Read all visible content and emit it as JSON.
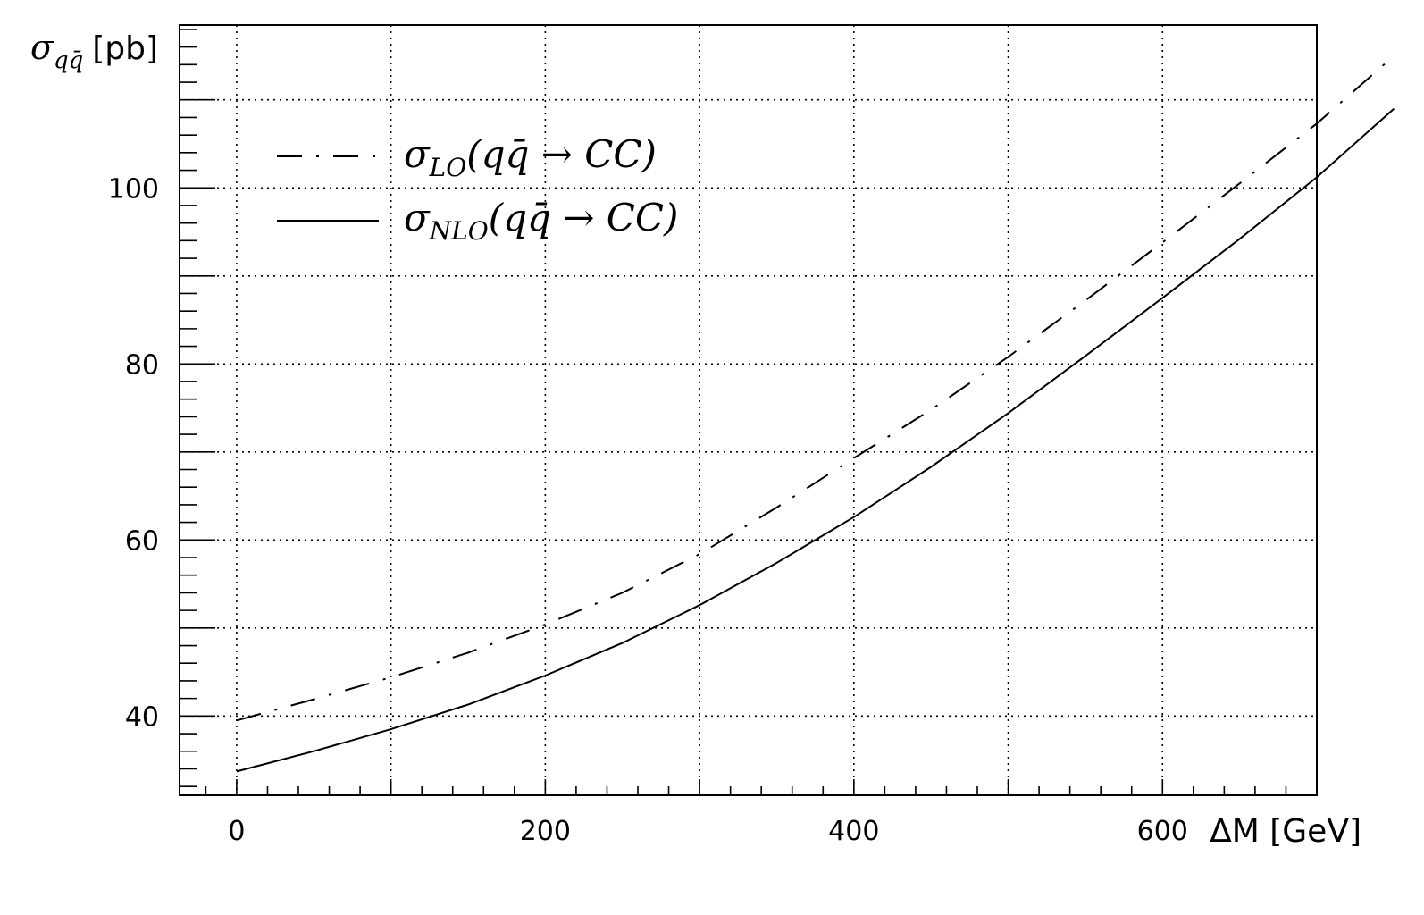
{
  "chart_data": {
    "type": "line",
    "xlabel": "ΔM [GeV]",
    "ylabel": {
      "symbol": "σ",
      "subscript": "qq̄",
      "unit": "[pb]"
    },
    "xlim": [
      -37,
      700
    ],
    "ylim": [
      31,
      118.5
    ],
    "x_ticks": [
      0,
      200,
      400,
      600
    ],
    "y_ticks": [
      40,
      60,
      80,
      100
    ],
    "grid": true,
    "legend_position": "top-left",
    "series": [
      {
        "name": {
          "symbol": "σ",
          "sub": "LO",
          "process": "(qq̄ → CC)"
        },
        "style": "dash-dot",
        "x": [
          0,
          50,
          100,
          150,
          200,
          250,
          300,
          350,
          400,
          450,
          500,
          550,
          600,
          650,
          700,
          750
        ],
        "y": [
          39.5,
          41.9,
          44.4,
          47.2,
          50.4,
          54.0,
          58.4,
          63.7,
          69.3,
          74.8,
          80.8,
          87.2,
          93.8,
          100.5,
          107.3,
          115.0
        ]
      },
      {
        "name": {
          "symbol": "σ",
          "sub": "NLO",
          "process": "(qq̄ → CC)"
        },
        "style": "solid",
        "x": [
          0,
          50,
          100,
          150,
          200,
          250,
          300,
          350,
          400,
          450,
          500,
          550,
          600,
          650,
          700,
          750
        ],
        "y": [
          33.7,
          36.0,
          38.5,
          41.3,
          44.6,
          48.3,
          52.6,
          57.4,
          62.6,
          68.3,
          74.4,
          80.9,
          87.5,
          94.2,
          101.2,
          109.0
        ]
      }
    ]
  }
}
